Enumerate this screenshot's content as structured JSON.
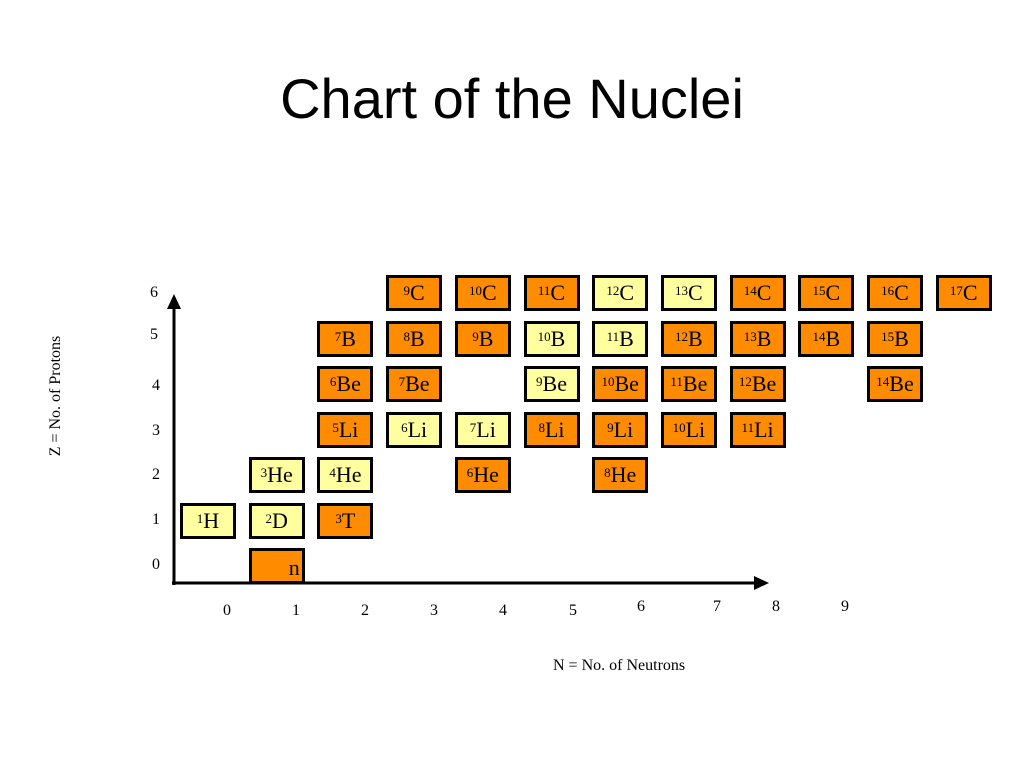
{
  "title": "Chart of the Nuclei",
  "y_axis_label": "Z = No. of Protons",
  "x_axis_label": "N = No. of Neutrons",
  "y_ticks": [
    "0",
    "1",
    "2",
    "3",
    "4",
    "5",
    "6"
  ],
  "x_ticks": [
    "0",
    "1",
    "2",
    "3",
    "4",
    "5",
    "6",
    "7",
    "8",
    "9"
  ],
  "colors": {
    "stable": "#ffffa0",
    "unstable": "#ff8c00",
    "border": "#000000"
  },
  "nuclides": [
    {
      "id": "n",
      "mass": "",
      "symbol": "n",
      "Z": 0,
      "N": 1,
      "stable": false
    },
    {
      "id": "h1",
      "mass": "1",
      "symbol": "H",
      "Z": 1,
      "N": 0,
      "stable": true
    },
    {
      "id": "d2",
      "mass": "2",
      "symbol": "D",
      "Z": 1,
      "N": 1,
      "stable": true
    },
    {
      "id": "t3",
      "mass": "3",
      "symbol": "T",
      "Z": 1,
      "N": 2,
      "stable": false
    },
    {
      "id": "he3",
      "mass": "3",
      "symbol": "He",
      "Z": 2,
      "N": 1,
      "stable": true
    },
    {
      "id": "he4",
      "mass": "4",
      "symbol": "He",
      "Z": 2,
      "N": 2,
      "stable": true
    },
    {
      "id": "he6",
      "mass": "6",
      "symbol": "He",
      "Z": 2,
      "N": 4,
      "stable": false
    },
    {
      "id": "he8",
      "mass": "8",
      "symbol": "He",
      "Z": 2,
      "N": 6,
      "stable": false
    },
    {
      "id": "li5",
      "mass": "5",
      "symbol": "Li",
      "Z": 3,
      "N": 2,
      "stable": false
    },
    {
      "id": "li6",
      "mass": "6",
      "symbol": "Li",
      "Z": 3,
      "N": 3,
      "stable": true
    },
    {
      "id": "li7",
      "mass": "7",
      "symbol": "Li",
      "Z": 3,
      "N": 4,
      "stable": true
    },
    {
      "id": "li8",
      "mass": "8",
      "symbol": "Li",
      "Z": 3,
      "N": 5,
      "stable": false
    },
    {
      "id": "li9",
      "mass": "9",
      "symbol": "Li",
      "Z": 3,
      "N": 6,
      "stable": false
    },
    {
      "id": "li10",
      "mass": "10",
      "symbol": "Li",
      "Z": 3,
      "N": 7,
      "stable": false
    },
    {
      "id": "li11",
      "mass": "11",
      "symbol": "Li",
      "Z": 3,
      "N": 8,
      "stable": false
    },
    {
      "id": "be6",
      "mass": "6",
      "symbol": "Be",
      "Z": 4,
      "N": 2,
      "stable": false
    },
    {
      "id": "be7",
      "mass": "7",
      "symbol": "Be",
      "Z": 4,
      "N": 3,
      "stable": false
    },
    {
      "id": "be9",
      "mass": "9",
      "symbol": "Be",
      "Z": 4,
      "N": 5,
      "stable": true
    },
    {
      "id": "be10",
      "mass": "10",
      "symbol": "Be",
      "Z": 4,
      "N": 6,
      "stable": false
    },
    {
      "id": "be11",
      "mass": "11",
      "symbol": "Be",
      "Z": 4,
      "N": 7,
      "stable": false
    },
    {
      "id": "be12",
      "mass": "12",
      "symbol": "Be",
      "Z": 4,
      "N": 8,
      "stable": false
    },
    {
      "id": "be14",
      "mass": "14",
      "symbol": "Be",
      "Z": 4,
      "N": 10,
      "stable": false
    },
    {
      "id": "b7",
      "mass": "7",
      "symbol": "B",
      "Z": 5,
      "N": 2,
      "stable": false
    },
    {
      "id": "b8",
      "mass": "8",
      "symbol": "B",
      "Z": 5,
      "N": 3,
      "stable": false
    },
    {
      "id": "b9",
      "mass": "9",
      "symbol": "B",
      "Z": 5,
      "N": 4,
      "stable": false
    },
    {
      "id": "b10",
      "mass": "10",
      "symbol": "B",
      "Z": 5,
      "N": 5,
      "stable": true
    },
    {
      "id": "b11",
      "mass": "11",
      "symbol": "B",
      "Z": 5,
      "N": 6,
      "stable": true
    },
    {
      "id": "b12",
      "mass": "12",
      "symbol": "B",
      "Z": 5,
      "N": 7,
      "stable": false
    },
    {
      "id": "b13",
      "mass": "13",
      "symbol": "B",
      "Z": 5,
      "N": 8,
      "stable": false
    },
    {
      "id": "b14",
      "mass": "14",
      "symbol": "B",
      "Z": 5,
      "N": 9,
      "stable": false
    },
    {
      "id": "b15",
      "mass": "15",
      "symbol": "B",
      "Z": 5,
      "N": 10,
      "stable": false
    },
    {
      "id": "c9",
      "mass": "9",
      "symbol": "C",
      "Z": 6,
      "N": 3,
      "stable": false
    },
    {
      "id": "c10",
      "mass": "10",
      "symbol": "C",
      "Z": 6,
      "N": 4,
      "stable": false
    },
    {
      "id": "c11",
      "mass": "11",
      "symbol": "C",
      "Z": 6,
      "N": 5,
      "stable": false
    },
    {
      "id": "c12",
      "mass": "12",
      "symbol": "C",
      "Z": 6,
      "N": 6,
      "stable": true
    },
    {
      "id": "c13",
      "mass": "13",
      "symbol": "C",
      "Z": 6,
      "N": 7,
      "stable": true
    },
    {
      "id": "c14",
      "mass": "14",
      "symbol": "C",
      "Z": 6,
      "N": 8,
      "stable": false
    },
    {
      "id": "c15",
      "mass": "15",
      "symbol": "C",
      "Z": 6,
      "N": 9,
      "stable": false
    },
    {
      "id": "c16",
      "mass": "16",
      "symbol": "C",
      "Z": 6,
      "N": 10,
      "stable": false
    },
    {
      "id": "c17",
      "mass": "17",
      "symbol": "C",
      "Z": 6,
      "N": 11,
      "stable": false
    }
  ]
}
